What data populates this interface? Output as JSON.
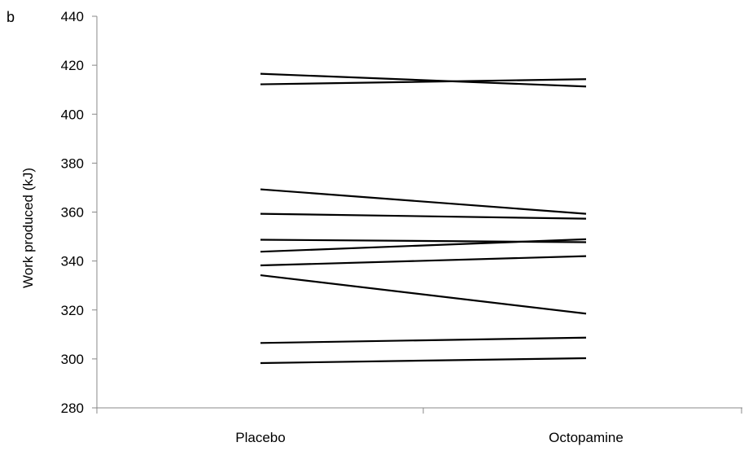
{
  "chart_data": {
    "type": "line",
    "panel_label": "b",
    "title": "",
    "xlabel": "",
    "ylabel": "Work produced (kJ)",
    "categories": [
      "Placebo",
      "Octopamine"
    ],
    "ylim": [
      280,
      440
    ],
    "yticks": [
      280,
      300,
      320,
      340,
      360,
      380,
      400,
      420,
      440
    ],
    "grid": false,
    "legend": false,
    "colors": {
      "line": "#000000",
      "axis": "#888888"
    },
    "series": [
      {
        "values": [
          416.5,
          411.3
        ]
      },
      {
        "values": [
          412.2,
          414.3
        ]
      },
      {
        "values": [
          369.3,
          359.3
        ]
      },
      {
        "values": [
          359.3,
          357.3
        ]
      },
      {
        "values": [
          348.7,
          347.7
        ]
      },
      {
        "values": [
          343.8,
          348.9
        ]
      },
      {
        "values": [
          338.2,
          342.0
        ]
      },
      {
        "values": [
          334.2,
          318.5
        ]
      },
      {
        "values": [
          306.5,
          308.7
        ]
      },
      {
        "values": [
          298.3,
          300.3
        ]
      }
    ]
  }
}
